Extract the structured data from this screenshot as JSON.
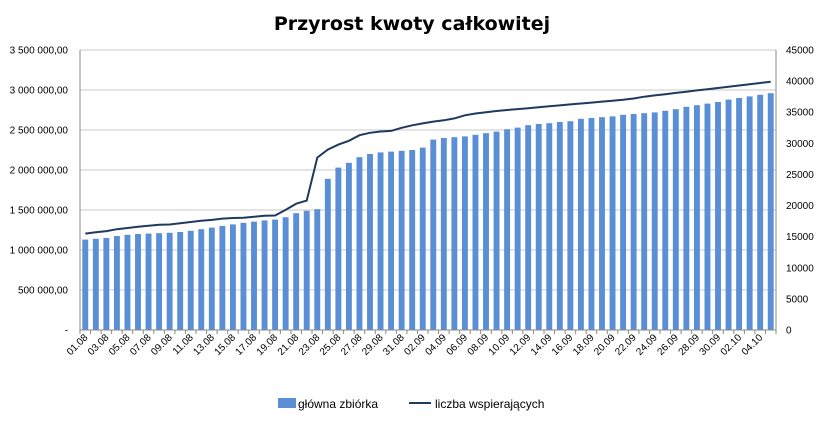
{
  "chart_data": {
    "type": "bar",
    "title": "Przyrost kwoty całkowitej",
    "categories": [
      "01.08",
      "02.08",
      "03.08",
      "04.08",
      "05.08",
      "06.08",
      "07.08",
      "08.08",
      "09.08",
      "10.08",
      "11.08",
      "12.08",
      "13.08",
      "14.08",
      "15.08",
      "16.08",
      "17.08",
      "18.08",
      "19.08",
      "20.08",
      "21.08",
      "22.08",
      "23.08",
      "24.08",
      "25.08",
      "26.08",
      "27.08",
      "28.08",
      "29.08",
      "30.08",
      "31.08",
      "01.09",
      "02.09",
      "03.09",
      "04.09",
      "05.09",
      "06.09",
      "07.09",
      "08.09",
      "09.09",
      "10.09",
      "11.09",
      "12.09",
      "13.09",
      "14.09",
      "15.09",
      "16.09",
      "17.09",
      "18.09",
      "19.09",
      "20.09",
      "21.09",
      "22.09",
      "23.09",
      "24.09",
      "25.09",
      "26.09",
      "27.09",
      "28.09",
      "29.09",
      "30.09",
      "01.10",
      "02.10",
      "03.10",
      "04.10",
      "05.10"
    ],
    "x_tick_labels": [
      "01.08",
      "03.08",
      "05.08",
      "07.08",
      "09.08",
      "11.08",
      "13.08",
      "15.08",
      "17.08",
      "19.08",
      "21.08",
      "23.08",
      "25.08",
      "27.08",
      "29.08",
      "31.08",
      "02.09",
      "04.09",
      "06.09",
      "08.09",
      "10.09",
      "12.09",
      "14.09",
      "16.09",
      "18.09",
      "20.09",
      "22.09",
      "24.09",
      "26.09",
      "28.09",
      "30.09",
      "02.10",
      "04.10"
    ],
    "y_left": {
      "ylim": [
        0,
        3500000
      ],
      "ticks": [
        0,
        500000,
        1000000,
        1500000,
        2000000,
        2500000,
        3000000,
        3500000
      ],
      "tick_labels": [
        "-",
        "500 000,00",
        "1 000 000,00",
        "1 500 000,00",
        "2 000 000,00",
        "2 500 000,00",
        "3 000 000,00",
        "3 500 000,00"
      ]
    },
    "y_right": {
      "ylim": [
        0,
        45000
      ],
      "ticks": [
        0,
        5000,
        10000,
        15000,
        20000,
        25000,
        30000,
        35000,
        40000,
        45000
      ],
      "tick_labels": [
        "0",
        "5000",
        "10000",
        "15000",
        "20000",
        "25000",
        "30000",
        "35000",
        "40000",
        "45000"
      ]
    },
    "series": [
      {
        "name": "główna zbiórka",
        "type": "bar",
        "axis": "left",
        "color": "#5B8FD5",
        "values": [
          1130000,
          1140000,
          1150000,
          1175000,
          1190000,
          1200000,
          1205000,
          1210000,
          1215000,
          1225000,
          1240000,
          1260000,
          1280000,
          1300000,
          1320000,
          1340000,
          1355000,
          1370000,
          1380000,
          1410000,
          1460000,
          1490000,
          1510000,
          1890000,
          2030000,
          2090000,
          2160000,
          2200000,
          2220000,
          2230000,
          2240000,
          2250000,
          2280000,
          2380000,
          2400000,
          2410000,
          2420000,
          2440000,
          2460000,
          2480000,
          2510000,
          2530000,
          2560000,
          2575000,
          2585000,
          2600000,
          2610000,
          2640000,
          2650000,
          2660000,
          2670000,
          2690000,
          2700000,
          2710000,
          2720000,
          2740000,
          2760000,
          2790000,
          2810000,
          2830000,
          2850000,
          2880000,
          2900000,
          2920000,
          2940000,
          2960000
        ]
      },
      {
        "name": "liczba wspierających",
        "type": "line",
        "axis": "right",
        "color": "#1F3A5F",
        "values": [
          15500,
          15700,
          15900,
          16200,
          16400,
          16600,
          16750,
          16900,
          16950,
          17150,
          17350,
          17550,
          17700,
          17900,
          18000,
          18050,
          18200,
          18350,
          18400,
          19300,
          20300,
          20800,
          27700,
          29000,
          29800,
          30400,
          31300,
          31700,
          31900,
          32000,
          32500,
          32900,
          33200,
          33500,
          33700,
          34000,
          34500,
          34800,
          35000,
          35200,
          35350,
          35500,
          35650,
          35800,
          35950,
          36100,
          36250,
          36400,
          36550,
          36700,
          36850,
          37000,
          37200,
          37500,
          37700,
          37900,
          38100,
          38300,
          38500,
          38700,
          38900,
          39100,
          39300,
          39500,
          39700,
          39900
        ]
      }
    ],
    "legend_position": "bottom",
    "grid": true
  }
}
